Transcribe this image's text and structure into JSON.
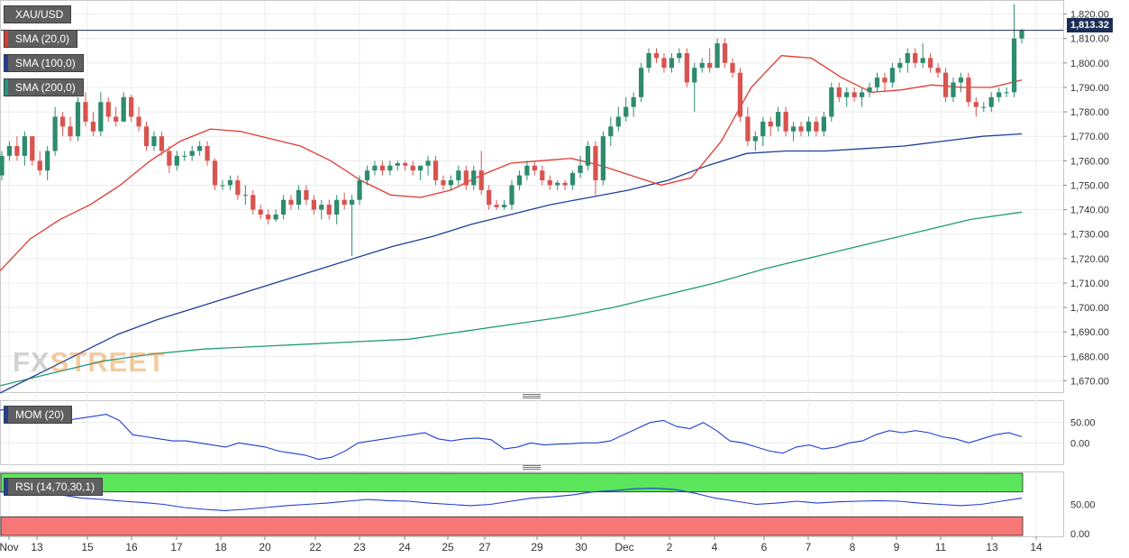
{
  "symbol": "XAU/USD",
  "last_price_label": "1,813.32",
  "watermark": {
    "part1": "FX",
    "part2": "STREET"
  },
  "indicators": [
    {
      "label": "SMA (20,0)",
      "color": "#e03a2f"
    },
    {
      "label": "SMA (100,0)",
      "color": "#1f3f9a"
    },
    {
      "label": "SMA (200,0)",
      "color": "#1f9a7a"
    }
  ],
  "mom_label": "MOM (20)",
  "rsi_label": "RSI (14,70,30,1)",
  "colors": {
    "up": "#2e8b6e",
    "down": "#d9534f",
    "rsi_overbought": "#5ce65c",
    "rsi_oversold": "#f87878"
  },
  "chart_data": [
    {
      "type": "candlestick",
      "title": "XAU/USD",
      "ylim": [
        1665,
        1825
      ],
      "y_ticks": [
        1670,
        1680,
        1690,
        1700,
        1710,
        1720,
        1730,
        1740,
        1750,
        1760,
        1770,
        1780,
        1790,
        1800,
        1810,
        1820
      ],
      "y_tick_labels": [
        "1,670.00",
        "1,680.00",
        "1,690.00",
        "1,700.00",
        "1,710.00",
        "1,720.00",
        "1,730.00",
        "1,740.00",
        "1,750.00",
        "1,760.00",
        "1,770.00",
        "1,780.00",
        "1,790.00",
        "1,800.00",
        "1,810.00",
        "1,820.00"
      ],
      "x_tick_labels": [
        "Nov",
        "13",
        "15",
        "16",
        "17",
        "18",
        "20",
        "22",
        "23",
        "24",
        "25",
        "27",
        "29",
        "30",
        "Dec",
        "2",
        "4",
        "6",
        "7",
        "8",
        "9",
        "11",
        "13",
        "14"
      ],
      "last_price": 1813.32,
      "ohlc": [
        [
          1754,
          1764,
          1752,
          1762
        ],
        [
          1762,
          1768,
          1760,
          1766
        ],
        [
          1766,
          1770,
          1760,
          1762
        ],
        [
          1762,
          1772,
          1758,
          1770
        ],
        [
          1770,
          1770,
          1758,
          1760
        ],
        [
          1760,
          1764,
          1754,
          1756
        ],
        [
          1756,
          1766,
          1752,
          1764
        ],
        [
          1764,
          1782,
          1762,
          1778
        ],
        [
          1778,
          1780,
          1770,
          1774
        ],
        [
          1774,
          1778,
          1768,
          1770
        ],
        [
          1770,
          1786,
          1768,
          1784
        ],
        [
          1784,
          1788,
          1774,
          1776
        ],
        [
          1776,
          1780,
          1770,
          1772
        ],
        [
          1772,
          1788,
          1770,
          1784
        ],
        [
          1784,
          1786,
          1776,
          1778
        ],
        [
          1778,
          1782,
          1774,
          1776
        ],
        [
          1776,
          1788,
          1776,
          1786
        ],
        [
          1786,
          1787,
          1776,
          1778
        ],
        [
          1778,
          1782,
          1772,
          1774
        ],
        [
          1774,
          1776,
          1764,
          1766
        ],
        [
          1766,
          1772,
          1764,
          1770
        ],
        [
          1770,
          1772,
          1762,
          1764
        ],
        [
          1764,
          1766,
          1755,
          1758
        ],
        [
          1758,
          1764,
          1756,
          1762
        ],
        [
          1762,
          1764,
          1760,
          1762
        ],
        [
          1762,
          1766,
          1760,
          1764
        ],
        [
          1764,
          1768,
          1762,
          1766
        ],
        [
          1766,
          1768,
          1758,
          1760
        ],
        [
          1760,
          1761,
          1748,
          1750
        ],
        [
          1750,
          1752,
          1748,
          1750
        ],
        [
          1750,
          1754,
          1748,
          1752
        ],
        [
          1752,
          1754,
          1744,
          1746
        ],
        [
          1746,
          1750,
          1742,
          1746
        ],
        [
          1746,
          1748,
          1738,
          1740
        ],
        [
          1740,
          1742,
          1736,
          1738
        ],
        [
          1738,
          1740,
          1734,
          1736
        ],
        [
          1736,
          1740,
          1735,
          1738
        ],
        [
          1738,
          1746,
          1736,
          1744
        ],
        [
          1744,
          1746,
          1740,
          1742
        ],
        [
          1742,
          1750,
          1740,
          1748
        ],
        [
          1748,
          1750,
          1742,
          1744
        ],
        [
          1744,
          1746,
          1738,
          1740
        ],
        [
          1740,
          1744,
          1736,
          1742
        ],
        [
          1742,
          1744,
          1736,
          1738
        ],
        [
          1738,
          1746,
          1734,
          1744
        ],
        [
          1744,
          1747,
          1740,
          1742
        ],
        [
          1742,
          1746,
          1721,
          1744
        ],
        [
          1744,
          1754,
          1742,
          1752
        ],
        [
          1752,
          1758,
          1750,
          1756
        ],
        [
          1756,
          1760,
          1754,
          1758
        ],
        [
          1758,
          1760,
          1754,
          1756
        ],
        [
          1756,
          1760,
          1754,
          1758
        ],
        [
          1758,
          1760,
          1756,
          1759
        ],
        [
          1759,
          1760,
          1756,
          1758
        ],
        [
          1758,
          1760,
          1754,
          1756
        ],
        [
          1756,
          1758,
          1752,
          1758
        ],
        [
          1758,
          1762,
          1754,
          1760
        ],
        [
          1760,
          1762,
          1750,
          1752
        ],
        [
          1752,
          1754,
          1748,
          1750
        ],
        [
          1750,
          1754,
          1748,
          1752
        ],
        [
          1752,
          1758,
          1750,
          1756
        ],
        [
          1756,
          1758,
          1748,
          1750
        ],
        [
          1750,
          1758,
          1748,
          1756
        ],
        [
          1756,
          1764,
          1746,
          1748
        ],
        [
          1748,
          1750,
          1740,
          1742
        ],
        [
          1742,
          1744,
          1740,
          1741
        ],
        [
          1741,
          1744,
          1740,
          1742
        ],
        [
          1742,
          1752,
          1740,
          1750
        ],
        [
          1750,
          1756,
          1748,
          1754
        ],
        [
          1754,
          1760,
          1752,
          1758
        ],
        [
          1758,
          1760,
          1754,
          1756
        ],
        [
          1756,
          1758,
          1750,
          1752
        ],
        [
          1752,
          1754,
          1748,
          1750
        ],
        [
          1750,
          1752,
          1748,
          1751
        ],
        [
          1751,
          1752,
          1748,
          1750
        ],
        [
          1750,
          1756,
          1748,
          1755
        ],
        [
          1755,
          1762,
          1753,
          1758
        ],
        [
          1758,
          1768,
          1756,
          1766
        ],
        [
          1766,
          1768,
          1746,
          1752
        ],
        [
          1752,
          1772,
          1750,
          1770
        ],
        [
          1770,
          1778,
          1766,
          1774
        ],
        [
          1774,
          1782,
          1772,
          1778
        ],
        [
          1778,
          1786,
          1776,
          1782
        ],
        [
          1782,
          1788,
          1778,
          1786
        ],
        [
          1786,
          1800,
          1784,
          1798
        ],
        [
          1798,
          1806,
          1796,
          1804
        ],
        [
          1804,
          1806,
          1800,
          1802
        ],
        [
          1802,
          1804,
          1796,
          1798
        ],
        [
          1798,
          1804,
          1796,
          1802
        ],
        [
          1802,
          1806,
          1800,
          1804
        ],
        [
          1804,
          1806,
          1790,
          1792
        ],
        [
          1792,
          1800,
          1780,
          1798
        ],
        [
          1798,
          1802,
          1796,
          1800
        ],
        [
          1800,
          1806,
          1796,
          1798
        ],
        [
          1798,
          1810,
          1798,
          1808
        ],
        [
          1808,
          1810,
          1798,
          1800
        ],
        [
          1800,
          1802,
          1794,
          1796
        ],
        [
          1796,
          1798,
          1776,
          1778
        ],
        [
          1778,
          1782,
          1766,
          1768
        ],
        [
          1768,
          1772,
          1764,
          1770
        ],
        [
          1770,
          1778,
          1766,
          1776
        ],
        [
          1776,
          1778,
          1770,
          1774
        ],
        [
          1774,
          1782,
          1772,
          1780
        ],
        [
          1780,
          1782,
          1770,
          1772
        ],
        [
          1772,
          1776,
          1768,
          1774
        ],
        [
          1774,
          1776,
          1770,
          1772
        ],
        [
          1772,
          1778,
          1770,
          1776
        ],
        [
          1776,
          1778,
          1770,
          1772
        ],
        [
          1772,
          1780,
          1770,
          1778
        ],
        [
          1778,
          1792,
          1776,
          1790
        ],
        [
          1790,
          1792,
          1784,
          1786
        ],
        [
          1786,
          1790,
          1782,
          1788
        ],
        [
          1788,
          1790,
          1784,
          1786
        ],
        [
          1786,
          1790,
          1782,
          1788
        ],
        [
          1788,
          1792,
          1786,
          1790
        ],
        [
          1790,
          1796,
          1788,
          1794
        ],
        [
          1794,
          1796,
          1788,
          1792
        ],
        [
          1792,
          1800,
          1790,
          1798
        ],
        [
          1798,
          1802,
          1796,
          1800
        ],
        [
          1800,
          1806,
          1796,
          1804
        ],
        [
          1804,
          1806,
          1798,
          1800
        ],
        [
          1800,
          1808,
          1798,
          1802
        ],
        [
          1802,
          1804,
          1796,
          1798
        ],
        [
          1798,
          1800,
          1794,
          1796
        ],
        [
          1796,
          1798,
          1784,
          1786
        ],
        [
          1786,
          1794,
          1784,
          1792
        ],
        [
          1792,
          1796,
          1788,
          1794
        ],
        [
          1794,
          1796,
          1782,
          1784
        ],
        [
          1784,
          1786,
          1778,
          1782
        ],
        [
          1782,
          1784,
          1780,
          1782
        ],
        [
          1782,
          1788,
          1780,
          1786
        ],
        [
          1786,
          1790,
          1784,
          1788
        ],
        [
          1788,
          1790,
          1786,
          1788
        ],
        [
          1788,
          1824,
          1786,
          1810
        ],
        [
          1810,
          1814,
          1808,
          1813.32
        ]
      ],
      "sma_20": [
        1715,
        1728,
        1736,
        1742,
        1750,
        1760,
        1768,
        1773,
        1772,
        1769,
        1766,
        1760,
        1752,
        1746,
        1745,
        1748,
        1754,
        1759,
        1760,
        1761,
        1758,
        1754,
        1750,
        1753,
        1768,
        1790,
        1803,
        1802,
        1794,
        1788,
        1789,
        1791,
        1790,
        1790,
        1793
      ],
      "sma_100": [
        1665,
        1673,
        1681,
        1689,
        1695,
        1700,
        1705,
        1710,
        1715,
        1720,
        1725,
        1729,
        1734,
        1738,
        1742,
        1745,
        1748,
        1752,
        1758,
        1763,
        1764,
        1764,
        1765,
        1766,
        1768,
        1770,
        1771
      ],
      "sma_200": [
        1668,
        1673,
        1678,
        1681,
        1683,
        1684,
        1685,
        1686,
        1687,
        1690,
        1693,
        1696,
        1700,
        1705,
        1710,
        1716,
        1721,
        1726,
        1731,
        1736,
        1739
      ]
    },
    {
      "type": "line",
      "title": "MOM (20)",
      "ylim": [
        -50,
        100
      ],
      "y_ticks": [
        0,
        50
      ],
      "y_tick_labels": [
        "0.00",
        "50.00"
      ],
      "values": [
        80,
        85,
        75,
        65,
        60,
        55,
        60,
        65,
        70,
        55,
        20,
        15,
        10,
        5,
        5,
        0,
        -5,
        -10,
        0,
        -5,
        -10,
        -20,
        -25,
        -30,
        -40,
        -35,
        -20,
        0,
        5,
        10,
        15,
        20,
        25,
        10,
        5,
        10,
        12,
        8,
        -15,
        -10,
        0,
        -5,
        -3,
        -2,
        0,
        0,
        5,
        20,
        35,
        50,
        55,
        40,
        35,
        50,
        30,
        5,
        0,
        -10,
        -20,
        -25,
        -10,
        -5,
        -15,
        -10,
        0,
        5,
        20,
        30,
        25,
        30,
        25,
        15,
        10,
        0,
        10,
        20,
        25,
        15
      ],
      "series": [
        {
          "name": "MOM (20)"
        }
      ]
    },
    {
      "type": "line",
      "title": "RSI (14,70,30,1)",
      "ylim": [
        0,
        100
      ],
      "y_ticks": [
        0,
        50
      ],
      "y_tick_labels": [
        "0.00",
        "50.00"
      ],
      "overbought": 70,
      "oversold": 30,
      "values": [
        70,
        68,
        67,
        65,
        60,
        58,
        55,
        53,
        50,
        45,
        42,
        40,
        42,
        45,
        48,
        50,
        52,
        55,
        58,
        56,
        55,
        52,
        50,
        48,
        50,
        55,
        60,
        62,
        65,
        70,
        72,
        75,
        76,
        74,
        68,
        60,
        55,
        50,
        52,
        55,
        52,
        54,
        55,
        56,
        55,
        52,
        50,
        48,
        50,
        55,
        60
      ],
      "series": [
        {
          "name": "RSI (14,70,30,1)"
        }
      ]
    }
  ]
}
